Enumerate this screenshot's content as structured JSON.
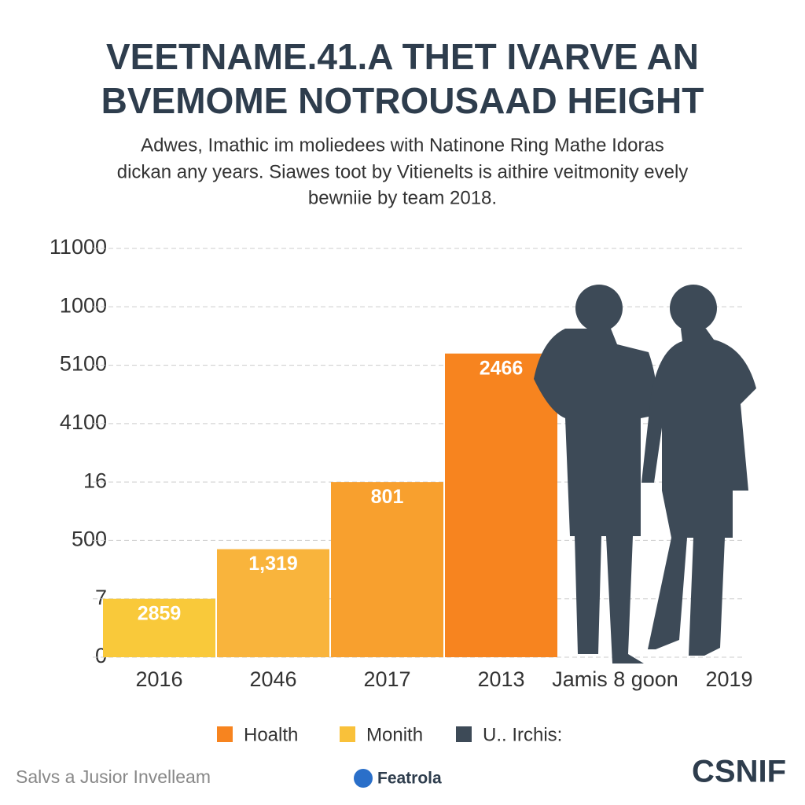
{
  "chart_data": {
    "type": "bar",
    "title_lines": [
      "VEETNAME.41.A THET IVARVE AN",
      "BVEMOME NOTROUSAAD HEIGHT"
    ],
    "subtitle_lines": [
      "Adwes, Imathic im moliedees with Natinone Ring Mathe Idoras",
      "dickan any years. Siawes toot by Vitienelts is aithire veitmonity evely",
      "bewniie by team 2018."
    ],
    "categories": [
      "2016",
      "2046",
      "2017",
      "2013",
      "Jamis 8 goon",
      "2019"
    ],
    "values": [
      1,
      1.85,
      3,
      5.2,
      null,
      null
    ],
    "bar_labels": [
      "2859",
      "1,319",
      "801",
      "2466",
      null,
      null
    ],
    "colors": [
      "#f9c93a",
      "#f9b43c",
      "#f8a02e",
      "#f7841f",
      null,
      null
    ],
    "ylim": [
      0,
      7
    ],
    "yticks": [
      {
        "value": 0,
        "label": "0"
      },
      {
        "value": 1,
        "label": "7"
      },
      {
        "value": 2,
        "label": "500"
      },
      {
        "value": 3,
        "label": "16"
      },
      {
        "value": 4,
        "label": "4100"
      },
      {
        "value": 5,
        "label": "5100"
      },
      {
        "value": 6,
        "label": "1000"
      },
      {
        "value": 7,
        "label": "11000"
      }
    ],
    "grid": true,
    "legend": [
      {
        "name": "Hoalth",
        "color": "#f7841f"
      },
      {
        "name": "Monith",
        "color": "#f9c13a"
      },
      {
        "name": "U.. Irchis:",
        "color": "#3d4a57"
      }
    ],
    "footer": {
      "left": "Salvs a Jusior Invelleam",
      "center": "Featrola",
      "right": "CSNIF"
    }
  }
}
